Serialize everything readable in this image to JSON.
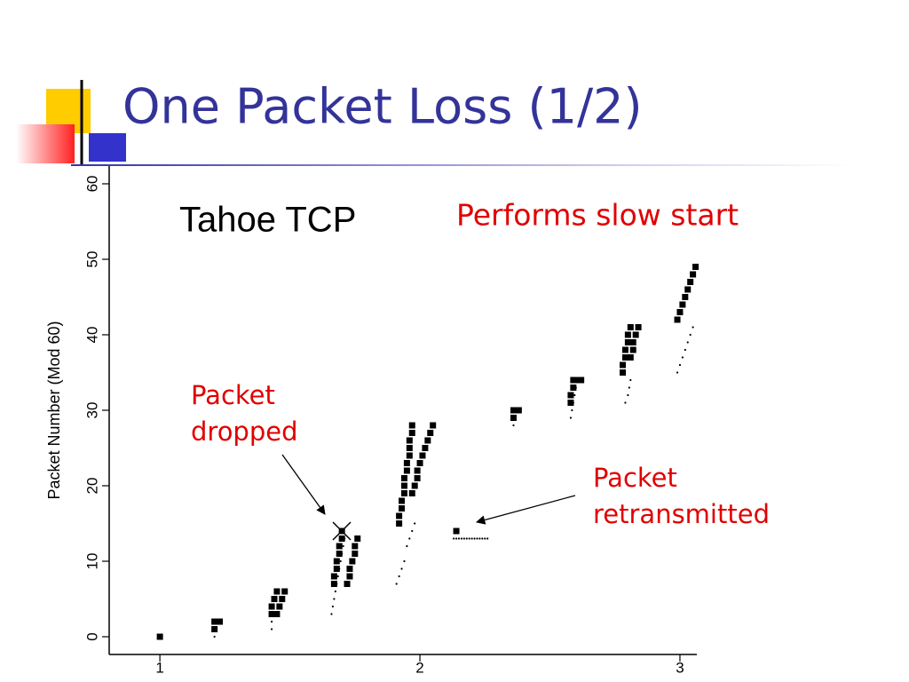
{
  "title": "One Packet Loss (1/2)",
  "chart_data": {
    "type": "scatter",
    "y_label": "Packet Number (Mod 60)",
    "xlim": [
      0.805,
      3.065
    ],
    "ylim": [
      -2.35,
      62.35
    ],
    "xticks": [
      1,
      2,
      3
    ],
    "yticks": [
      0,
      10,
      20,
      30,
      40,
      50,
      60
    ],
    "grid": false,
    "annotations": {
      "label": "Tahoe TCP",
      "note": "Performs slow start",
      "dropped": [
        "Packet",
        "dropped"
      ],
      "retransmitted": [
        "Packet",
        "retransmitted"
      ]
    },
    "series": [
      {
        "color": "#000000",
        "marker": "square",
        "x": [
          1.0,
          1.21,
          1.21,
          1.23,
          1.43,
          1.43,
          1.44,
          1.45,
          1.45,
          1.46,
          1.47,
          1.48,
          1.67,
          1.67,
          1.68,
          1.68,
          1.69,
          1.69,
          1.7,
          1.7,
          1.72,
          1.73,
          1.73,
          1.74,
          1.75,
          1.75,
          1.76,
          1.92,
          1.92,
          1.93,
          1.93,
          1.94,
          1.94,
          1.94,
          1.95,
          1.95,
          1.96,
          1.96,
          1.96,
          1.97,
          1.97,
          1.97,
          1.98,
          1.99,
          1.99,
          2.0,
          2.01,
          2.02,
          2.03,
          2.04,
          2.05,
          2.14,
          2.36,
          2.36,
          2.38,
          2.58,
          2.58,
          2.59,
          2.59,
          2.61,
          2.62,
          2.78,
          2.78,
          2.79,
          2.79,
          2.8,
          2.8,
          2.81,
          2.81,
          2.82,
          2.82,
          2.83,
          2.84,
          2.99,
          3.0,
          3.01,
          3.02,
          3.03,
          3.04,
          3.05,
          3.06
        ],
        "values": [
          0,
          1,
          2,
          2,
          3,
          4,
          5,
          6,
          3,
          4,
          5,
          6,
          7,
          8,
          9,
          10,
          11,
          12,
          13,
          14,
          7,
          8,
          9,
          10,
          11,
          12,
          13,
          15,
          16,
          17,
          18,
          19,
          20,
          21,
          22,
          23,
          24,
          25,
          26,
          27,
          28,
          19,
          20,
          21,
          22,
          23,
          24,
          25,
          26,
          27,
          28,
          14,
          29,
          30,
          30,
          31,
          32,
          33,
          34,
          34,
          34,
          35,
          36,
          37,
          38,
          39,
          40,
          41,
          37,
          38,
          39,
          40,
          41,
          42,
          43,
          44,
          45,
          46,
          47,
          48,
          49
        ]
      },
      {
        "color": "#000000",
        "marker": "dot",
        "x": [
          1.21,
          1.43,
          1.43,
          1.44,
          1.66,
          1.665,
          1.67,
          1.675,
          1.68,
          1.685,
          1.69,
          1.695,
          1.7,
          1.705,
          1.71,
          1.91,
          1.92,
          1.93,
          1.94,
          1.95,
          1.96,
          1.97,
          1.98,
          2.13,
          2.14,
          2.15,
          2.16,
          2.17,
          2.18,
          2.19,
          2.2,
          2.21,
          2.22,
          2.23,
          2.24,
          2.25,
          2.26,
          2.36,
          2.58,
          2.585,
          2.59,
          2.595,
          2.6,
          2.79,
          2.8,
          2.805,
          2.81,
          2.99,
          3.0,
          3.01,
          3.02,
          3.03,
          3.04,
          3.05
        ],
        "values": [
          0,
          1,
          2,
          3,
          3,
          4,
          5,
          6,
          7,
          8,
          9,
          10,
          11,
          12,
          13,
          7,
          8,
          9,
          10,
          12,
          13,
          14,
          15,
          13,
          13,
          13,
          13,
          13,
          13,
          13,
          13,
          13,
          13,
          13,
          13,
          13,
          13,
          28,
          29,
          30,
          31,
          32,
          33,
          31,
          32,
          33,
          34,
          35,
          36,
          37,
          38,
          39,
          40,
          41
        ]
      }
    ]
  }
}
